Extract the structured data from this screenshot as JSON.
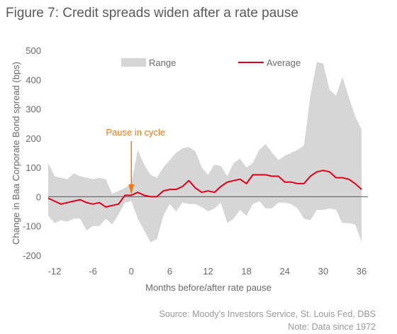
{
  "title": "Figure 7: Credit spreads widen after a rate pause",
  "source_line1": "Source: Moody’s Investors Service, St. Louis Fed, DBS",
  "source_line2": "Note: Data since 1972",
  "colors": {
    "range": "#d6d6d6",
    "average": "#e0001b",
    "annotation": "#ec7a1c",
    "zero_line": "#555555"
  },
  "chart_data": {
    "type": "area",
    "xlabel": "Months before/after rate pause",
    "ylabel": "Change in Baa Corporate Bond spread (bps)",
    "xlim": [
      -13,
      37
    ],
    "ylim": [
      -200,
      500
    ],
    "x_ticks": [
      -12,
      -6,
      0,
      6,
      12,
      18,
      24,
      30,
      36
    ],
    "y_ticks": [
      -200,
      -100,
      0,
      100,
      200,
      300,
      400,
      500
    ],
    "grid": false,
    "legend": {
      "placement": "top",
      "entries": [
        "Range",
        "Average"
      ]
    },
    "annotation": {
      "text": "Pause in cycle",
      "x": 0
    },
    "x": [
      -13,
      -12,
      -11,
      -10,
      -9,
      -8,
      -7,
      -6,
      -5,
      -4,
      -3,
      -2,
      -1,
      0,
      1,
      2,
      3,
      4,
      5,
      6,
      7,
      8,
      9,
      10,
      11,
      12,
      13,
      14,
      15,
      16,
      17,
      18,
      19,
      20,
      21,
      22,
      23,
      24,
      25,
      26,
      27,
      28,
      29,
      30,
      31,
      32,
      33,
      34,
      35,
      36
    ],
    "series": [
      {
        "name": "Range",
        "low": [
          -65,
          -90,
          -80,
          -85,
          -75,
          -75,
          -115,
          -100,
          -100,
          -75,
          -95,
          -60,
          -20,
          -15,
          -75,
          -115,
          -155,
          -145,
          -65,
          -25,
          -50,
          -20,
          -25,
          -25,
          -35,
          -50,
          -40,
          -20,
          -90,
          -75,
          -45,
          -65,
          -25,
          -15,
          -40,
          -40,
          -20,
          -20,
          -25,
          -40,
          -75,
          -80,
          -45,
          -45,
          -40,
          -45,
          -90,
          -90,
          -95,
          -155
        ],
        "high": [
          115,
          70,
          65,
          60,
          80,
          70,
          65,
          60,
          65,
          60,
          10,
          20,
          30,
          45,
          160,
          110,
          75,
          65,
          100,
          125,
          150,
          165,
          170,
          155,
          100,
          75,
          110,
          105,
          70,
          115,
          130,
          100,
          115,
          160,
          180,
          150,
          125,
          140,
          150,
          160,
          175,
          345,
          460,
          455,
          365,
          345,
          410,
          340,
          275,
          230
        ]
      },
      {
        "name": "Average",
        "values": [
          -5,
          -15,
          -25,
          -20,
          -15,
          -10,
          -20,
          -25,
          -20,
          -35,
          -30,
          -25,
          5,
          5,
          15,
          5,
          0,
          0,
          20,
          25,
          25,
          35,
          55,
          30,
          15,
          20,
          15,
          35,
          50,
          55,
          60,
          45,
          75,
          75,
          75,
          70,
          70,
          50,
          50,
          45,
          45,
          70,
          85,
          90,
          85,
          65,
          65,
          60,
          45,
          25
        ]
      }
    ]
  }
}
